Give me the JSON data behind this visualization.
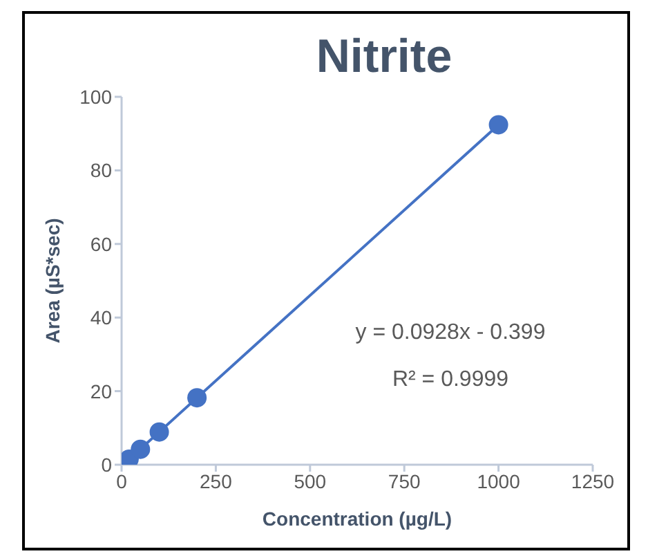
{
  "chart_data": {
    "type": "scatter",
    "title": "Nitrite",
    "xlabel": "Concentration (µg/L)",
    "ylabel": "Area (µS*sec)",
    "series": [
      {
        "color": "#4472c4",
        "x": [
          20,
          50,
          100,
          200,
          1000
        ],
        "values": [
          1.5,
          4.2,
          8.9,
          18.2,
          92.4
        ]
      },
      {
        "type": "line",
        "marker": "none",
        "color": "#4472c4",
        "x": [
          5,
          1000
        ],
        "values": [
          0.1,
          92.4
        ]
      }
    ],
    "xlim": [
      0,
      1250
    ],
    "xticks": [
      0,
      250,
      500,
      750,
      1000,
      1250
    ],
    "ylim": [
      0,
      100
    ],
    "yticks": [
      0,
      20,
      40,
      60,
      80,
      100
    ],
    "annotations": [
      "y = 0.0928x - 0.399",
      "R² = 0.9999"
    ],
    "grid": false,
    "legend": false,
    "marker": "circle"
  }
}
